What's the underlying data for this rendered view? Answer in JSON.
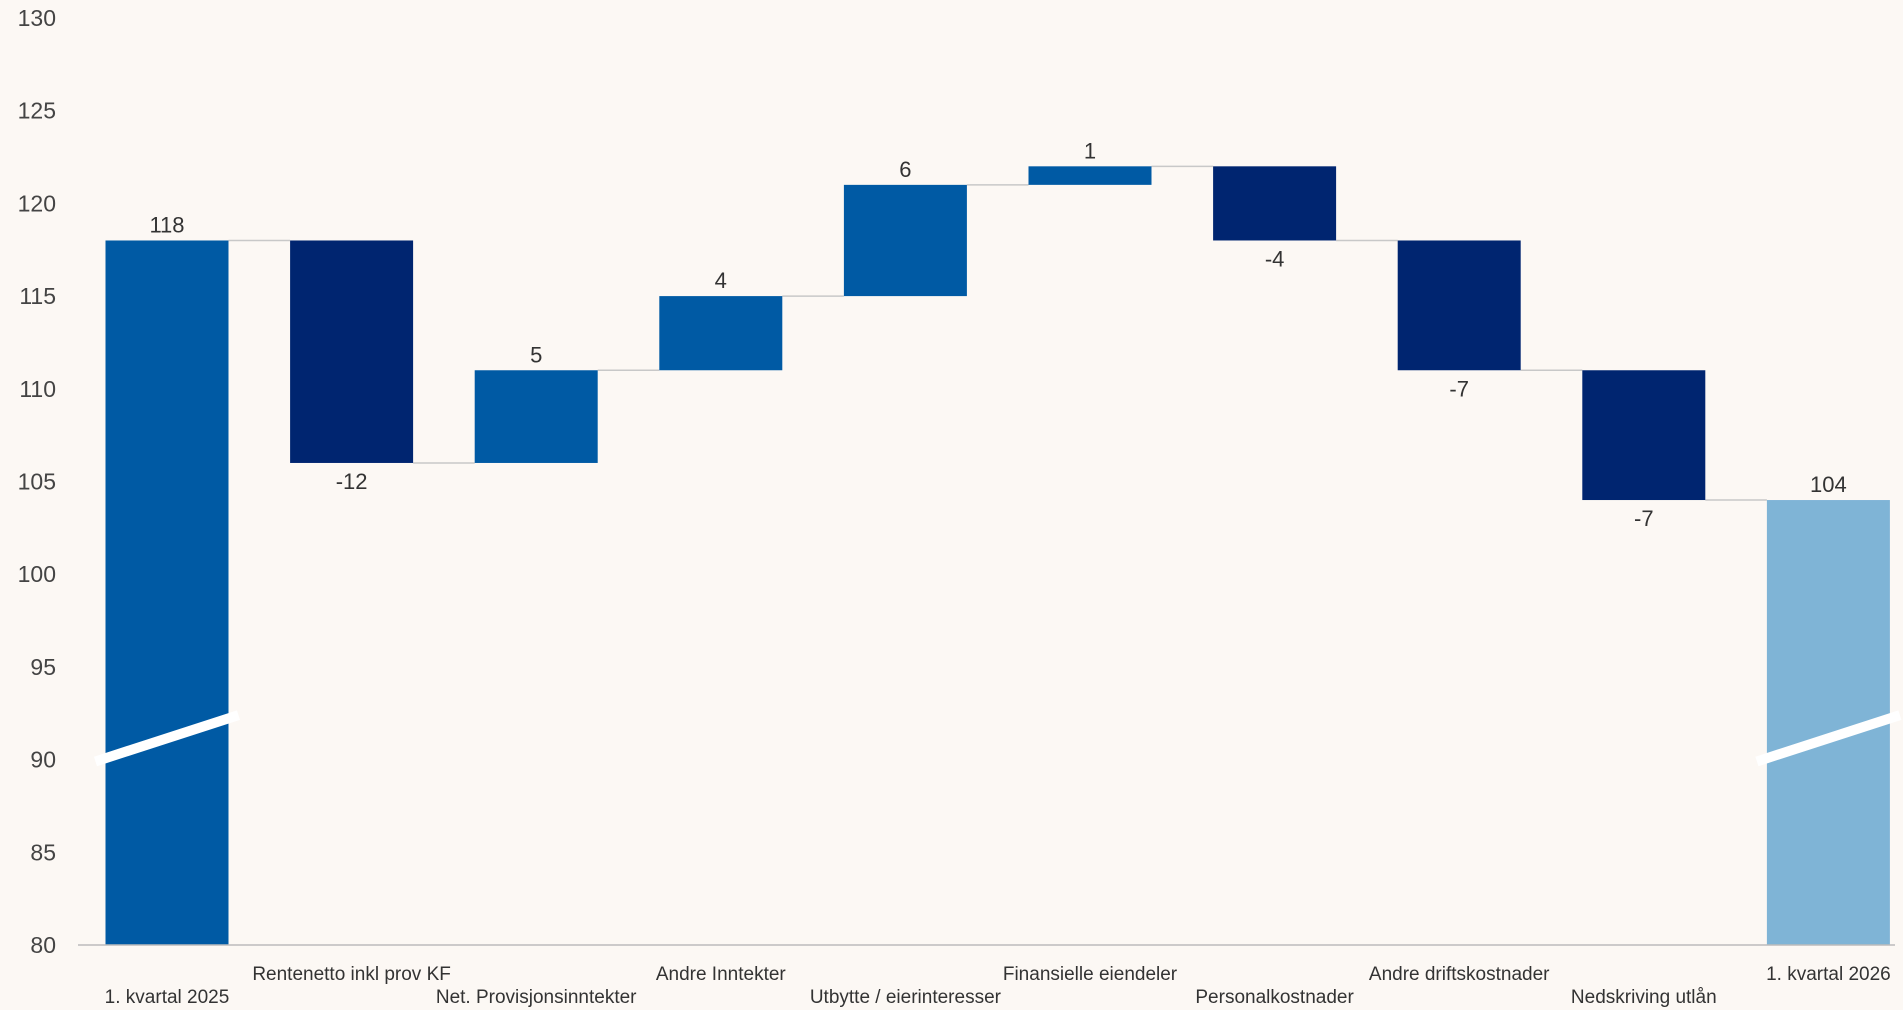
{
  "chart_data": {
    "type": "bar",
    "subtype": "waterfall",
    "title": "",
    "xlabel": "",
    "ylabel": "",
    "ylim": [
      80,
      130
    ],
    "yticks": [
      "130",
      "125",
      "120",
      "115",
      "110",
      "105",
      "100",
      "95",
      "90",
      "85",
      "80"
    ],
    "grid": false,
    "axis_break": true,
    "categories": [
      "1. kvartal  2025",
      "Rentenetto inkl prov KF",
      "Net. Provisjonsinntekter",
      "Andre Inntekter",
      "Utbytte / eierinteresser",
      "Finansielle eiendeler",
      "Personalkostnader",
      "Andre driftskostnader",
      "Nedskriving utlån",
      "1. kvartal  2026"
    ],
    "values": [
      118,
      -12,
      5,
      4,
      6,
      1,
      -4,
      -7,
      -7,
      104
    ],
    "value_labels": [
      "118",
      "-12",
      "5",
      "4",
      "6",
      "1",
      "-4",
      "-7",
      "-7",
      "104"
    ],
    "kinds": [
      "total",
      "delta",
      "delta",
      "delta",
      "delta",
      "delta",
      "delta",
      "delta",
      "delta",
      "total"
    ],
    "colors": {
      "start_total": "#005aa4",
      "increase": "#005aa4",
      "decrease": "#002570",
      "end_total": "#7fb4d6",
      "connector": "#c8c8c8",
      "axis": "#bbbbbb",
      "break": "#ffffff"
    }
  }
}
